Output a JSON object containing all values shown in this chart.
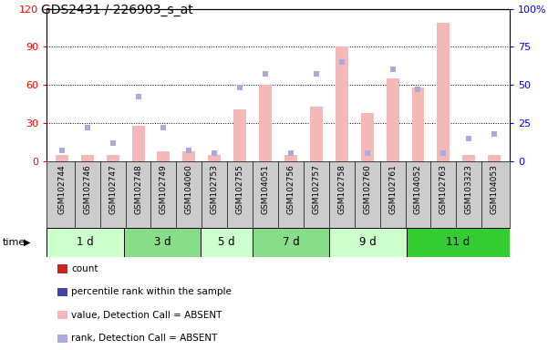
{
  "title": "GDS2431 / 226903_s_at",
  "samples": [
    "GSM102744",
    "GSM102746",
    "GSM102747",
    "GSM102748",
    "GSM102749",
    "GSM104060",
    "GSM102753",
    "GSM102755",
    "GSM104051",
    "GSM102756",
    "GSM102757",
    "GSM102758",
    "GSM102760",
    "GSM102761",
    "GSM104052",
    "GSM102763",
    "GSM103323",
    "GSM104053"
  ],
  "time_groups": [
    {
      "label": "1 d",
      "start": 0,
      "end": 3
    },
    {
      "label": "3 d",
      "start": 3,
      "end": 6
    },
    {
      "label": "5 d",
      "start": 6,
      "end": 8
    },
    {
      "label": "7 d",
      "start": 8,
      "end": 11
    },
    {
      "label": "9 d",
      "start": 11,
      "end": 14
    },
    {
      "label": "11 d",
      "start": 14,
      "end": 18
    }
  ],
  "group_colors": [
    "#ccffcc",
    "#88dd88",
    "#ccffcc",
    "#88dd88",
    "#ccffcc",
    "#33cc33"
  ],
  "bar_values": [
    5,
    5,
    5,
    28,
    8,
    8,
    5,
    41,
    60,
    5,
    43,
    90,
    38,
    65,
    58,
    109,
    5,
    5
  ],
  "dot_values": [
    7,
    22,
    12,
    42,
    22,
    7,
    5,
    48,
    57,
    5,
    57,
    65,
    5,
    60,
    47,
    5,
    15,
    18
  ],
  "bar_color_absent": "#f5b8b8",
  "dot_color_absent": "#aaaadd",
  "left_ylim": [
    0,
    120
  ],
  "right_ylim": [
    0,
    100
  ],
  "left_yticks": [
    0,
    30,
    60,
    90,
    120
  ],
  "right_yticks": [
    0,
    25,
    50,
    75,
    100
  ],
  "right_yticklabels": [
    "0",
    "25",
    "50",
    "75",
    "100%"
  ],
  "grid_values": [
    30,
    60,
    90
  ],
  "legend_colors": [
    "#cc2222",
    "#4444aa",
    "#f5b8b8",
    "#aaaadd"
  ],
  "legend_labels": [
    "count",
    "percentile rank within the sample",
    "value, Detection Call = ABSENT",
    "rank, Detection Call = ABSENT"
  ]
}
